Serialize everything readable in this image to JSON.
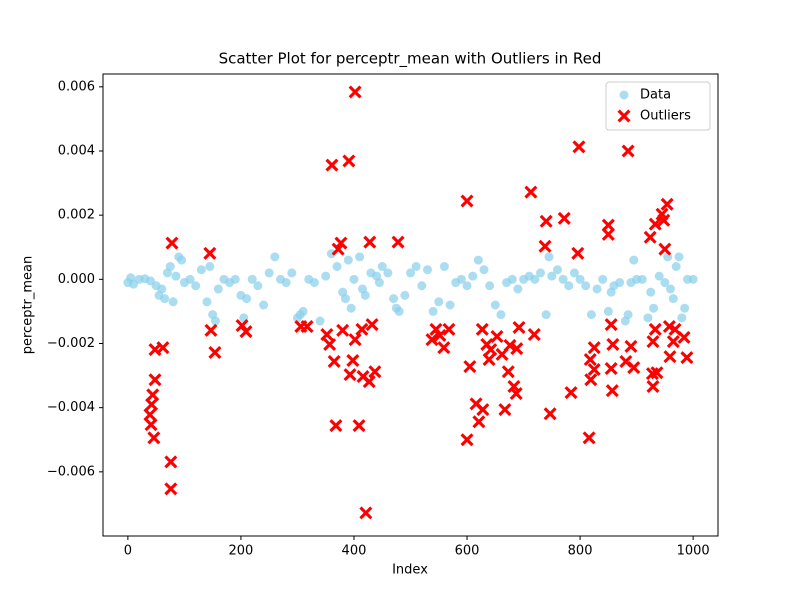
{
  "chart_data": {
    "type": "scatter",
    "title": "Scatter Plot for perceptr_mean with Outliers in Red",
    "x_label": "Index",
    "y_label": "perceptr_mean",
    "xlim": [
      -44,
      1044
    ],
    "ylim": [
      -0.008,
      0.0064
    ],
    "xticks": [
      0,
      200,
      400,
      600,
      800,
      1000
    ],
    "yticks": [
      {
        "value": -0.006,
        "label": "−0.006"
      },
      {
        "value": -0.004,
        "label": "−0.004"
      },
      {
        "value": -0.002,
        "label": "−0.002"
      },
      {
        "value": 0,
        "label": "0.000"
      },
      0.002,
      0.004,
      0.006
    ],
    "legend": "upper right",
    "series": [
      {
        "name": "Data",
        "color": "#87ceeb",
        "marker": "circle",
        "x": [
          0,
          5,
          10,
          20,
          30,
          40,
          50,
          55,
          60,
          65,
          70,
          75,
          80,
          85,
          90,
          95,
          100,
          110,
          120,
          130,
          140,
          145,
          150,
          155,
          160,
          170,
          180,
          190,
          200,
          205,
          210,
          220,
          230,
          240,
          250,
          260,
          270,
          280,
          290,
          300,
          305,
          310,
          320,
          330,
          340,
          350,
          360,
          370,
          380,
          385,
          390,
          395,
          400,
          410,
          415,
          420,
          430,
          440,
          445,
          450,
          460,
          470,
          475,
          480,
          490,
          500,
          510,
          520,
          530,
          540,
          550,
          560,
          570,
          580,
          590,
          600,
          610,
          620,
          630,
          640,
          650,
          660,
          670,
          680,
          690,
          700,
          710,
          720,
          730,
          740,
          745,
          750,
          760,
          770,
          780,
          790,
          800,
          810,
          820,
          830,
          840,
          850,
          855,
          860,
          870,
          880,
          885,
          890,
          895,
          900,
          910,
          920,
          925,
          930,
          940,
          950,
          955,
          960,
          965,
          970,
          975,
          980,
          985,
          990,
          1000
        ],
        "values": [
          -0.0001,
          5e-05,
          -0.00015,
          0,
          2e-05,
          -5e-05,
          -0.0002,
          -0.0005,
          -0.0003,
          -0.0006,
          0.0002,
          0.0004,
          -0.0007,
          0.0001,
          0.0007,
          0.0006,
          -0.0001,
          0,
          -0.0002,
          0.0003,
          -0.0007,
          0.0004,
          -0.0011,
          -0.0013,
          -0.0003,
          0,
          -0.0001,
          0,
          -0.0005,
          -0.0012,
          -0.0006,
          0,
          -0.0002,
          -0.0008,
          0.0002,
          0.0007,
          0,
          -0.0001,
          0.0002,
          -0.0012,
          -0.0011,
          -0.001,
          0,
          -0.0001,
          -0.0013,
          0.0001,
          0.0008,
          0.0004,
          -0.0004,
          -0.0006,
          0.0006,
          -0.0009,
          0,
          0.0007,
          -0.0003,
          -0.0005,
          0.0002,
          0.0001,
          -0.0001,
          0.0004,
          0.0002,
          -0.0006,
          -0.0009,
          -0.001,
          -0.0005,
          0.0002,
          0.0004,
          -0.0002,
          0.0003,
          -0.001,
          -0.0007,
          0.0004,
          -0.0008,
          -0.0001,
          0,
          -0.0002,
          0.0001,
          0.0006,
          0.0003,
          -0.0002,
          -0.0008,
          -0.0011,
          -0.0001,
          0,
          -0.0003,
          0,
          0.0001,
          0,
          0.0002,
          -0.0011,
          0.0007,
          0.0001,
          0.0003,
          0,
          -0.0002,
          0.0002,
          0,
          -0.0002,
          -0.0011,
          -0.0003,
          0,
          -0.001,
          -0.0004,
          -0.0002,
          -0.0001,
          -0.0013,
          -0.0011,
          -0.0001,
          0.0006,
          0,
          0,
          -0.0012,
          -0.0004,
          -0.0009,
          0.0001,
          -0.0001,
          0.0007,
          -0.0003,
          -0.0006,
          0.0004,
          0.0007,
          -0.0012,
          -0.0009,
          0,
          0
        ]
      },
      {
        "name": "Outliers",
        "color": "#ff0000",
        "marker": "x",
        "x": [
          402,
          361,
          391,
          421,
          78,
          145,
          798,
          885,
          713,
          600,
          740,
          772,
          738,
          796,
          850,
          850,
          924,
          933,
          945,
          954,
          948,
          950,
          372,
          377,
          428,
          478,
          48,
          62,
          48,
          44,
          42,
          39,
          41,
          46,
          76,
          76,
          147,
          154,
          202,
          209,
          306,
          317,
          352,
          357,
          365,
          368,
          380,
          393,
          398,
          402,
          409,
          414,
          416,
          427,
          432,
          437,
          538,
          545,
          552,
          559,
          568,
          605,
          600,
          616,
          621,
          628,
          627,
          635,
          639,
          642,
          653,
          662,
          667,
          673,
          676,
          683,
          687,
          692,
          688,
          719,
          747,
          784,
          816,
          818,
          819,
          825,
          825,
          855,
          858,
          855,
          857,
          881,
          890,
          895,
          928,
          929,
          936,
          933,
          929,
          958,
          959,
          965,
          968,
          984,
          989
        ],
        "values": [
          0.00584,
          0.00356,
          0.00369,
          -0.00728,
          0.00113,
          0.00081,
          0.00413,
          0.004,
          0.00272,
          0.00244,
          0.00181,
          0.0019,
          0.00103,
          0.00081,
          0.00169,
          0.0014,
          0.00131,
          0.00172,
          0.00203,
          0.00234,
          0.00184,
          0.00094,
          0.00094,
          0.00113,
          0.00116,
          0.00116,
          -0.00219,
          -0.00213,
          -0.00313,
          -0.0036,
          -0.0039,
          -0.00422,
          -0.00453,
          -0.00494,
          -0.00569,
          -0.00653,
          -0.00159,
          -0.00228,
          -0.00144,
          -0.00163,
          -0.00147,
          -0.00147,
          -0.00172,
          -0.00203,
          -0.00256,
          -0.00456,
          -0.00159,
          -0.00297,
          -0.00253,
          -0.00188,
          -0.00456,
          -0.00156,
          -0.00303,
          -0.00319,
          -0.00141,
          -0.00288,
          -0.00188,
          -0.00156,
          -0.00175,
          -0.00213,
          -0.00156,
          -0.00272,
          -0.005,
          -0.00388,
          -0.00444,
          -0.00406,
          -0.00156,
          -0.00203,
          -0.0025,
          -0.00219,
          -0.00178,
          -0.00234,
          -0.00406,
          -0.00288,
          -0.00206,
          -0.00334,
          -0.00356,
          -0.0015,
          -0.00216,
          -0.00172,
          -0.00419,
          -0.00353,
          -0.00494,
          -0.0025,
          -0.00313,
          -0.00213,
          -0.00281,
          -0.00141,
          -0.00203,
          -0.00278,
          -0.00347,
          -0.00256,
          -0.00209,
          -0.00275,
          -0.00294,
          -0.00334,
          -0.00291,
          -0.00156,
          -0.00194,
          -0.00147,
          -0.00241,
          -0.00194,
          -0.00156,
          -0.00181,
          -0.00244
        ]
      }
    ]
  }
}
